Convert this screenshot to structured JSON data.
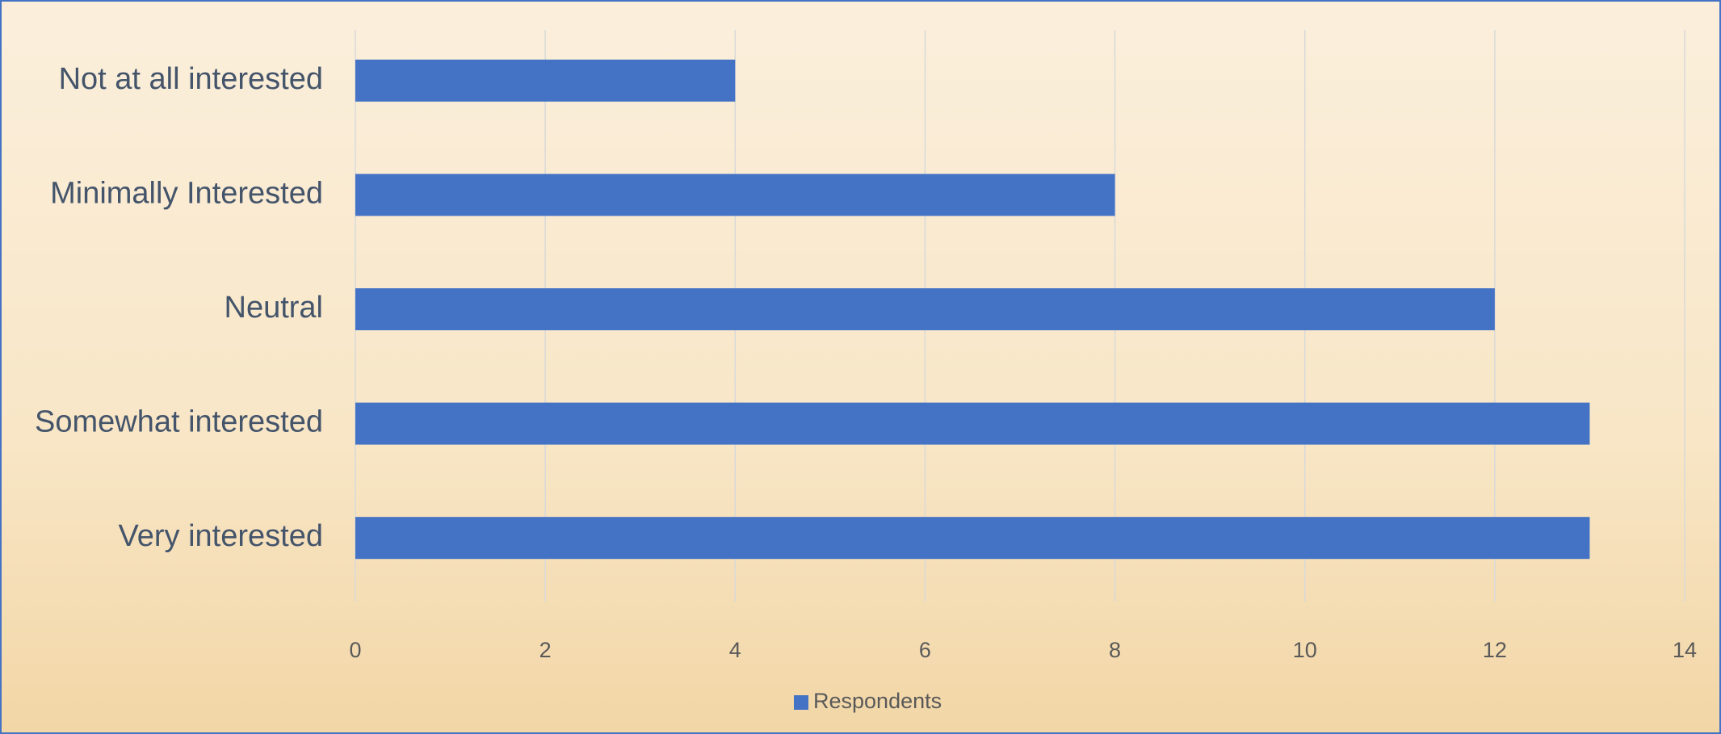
{
  "chart_data": {
    "type": "barh",
    "categories": [
      "Not at all interested",
      "Minimally Interested",
      "Neutral",
      "Somewhat interested",
      "Very interested"
    ],
    "series": [
      {
        "name": "Respondents",
        "color": "#4472c4",
        "values": [
          4,
          8,
          12,
          13,
          13
        ]
      }
    ],
    "xlim": [
      0,
      14
    ],
    "xticks": [
      0,
      2,
      4,
      6,
      8,
      10,
      12,
      14
    ],
    "grid": true,
    "legend": "bottom"
  }
}
